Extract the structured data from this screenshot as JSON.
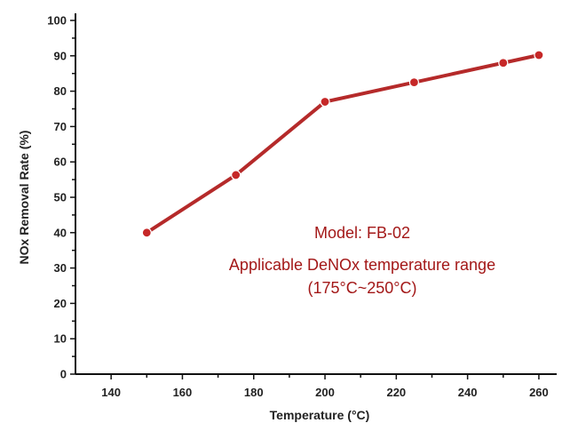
{
  "chart_data": {
    "type": "line",
    "title": "",
    "xlabel": "Temperature (°C)",
    "ylabel": "NOx Removal Rate (%)",
    "xlim": [
      130,
      265
    ],
    "ylim": [
      0,
      100
    ],
    "xticks": [
      140,
      160,
      180,
      200,
      220,
      240,
      260
    ],
    "yticks": [
      0,
      10,
      20,
      30,
      40,
      50,
      60,
      70,
      80,
      90,
      100
    ],
    "grid": false,
    "series": [
      {
        "name": "FB-02",
        "color": "#c62828",
        "x": [
          150,
          175,
          200,
          225,
          250,
          260
        ],
        "y": [
          40,
          56.3,
          77,
          82.5,
          88,
          90.2
        ]
      }
    ],
    "annotations": [
      "Model: FB-02",
      "Applicable DeNOx temperature range",
      "(175°C~250°C)"
    ]
  }
}
